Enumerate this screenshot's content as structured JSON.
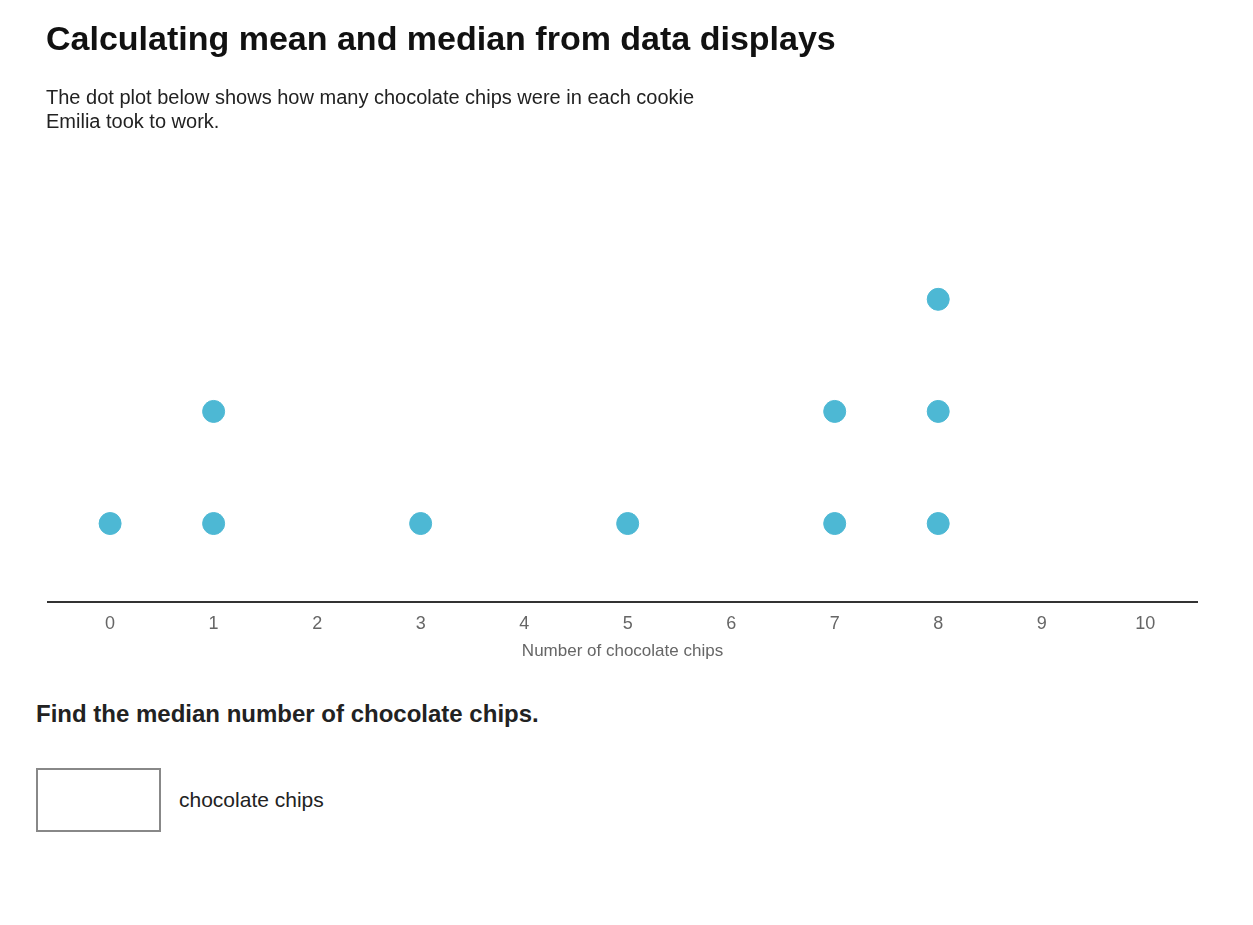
{
  "chart_data": {
    "type": "scatter",
    "title": "Calculating mean and median from data displays",
    "subtitle": [
      "The dot plot below shows how many chocolate chips were in each cookie",
      "Emilia took to work."
    ],
    "x_label": "Number of chocolate chips",
    "annotations": [
      "Find the median number of chocolate chips.",
      "chocolate chips"
    ],
    "x": [
      0,
      1,
      1,
      3,
      5,
      7,
      7,
      8,
      8,
      8
    ],
    "values": [
      1,
      1,
      2,
      1,
      1,
      1,
      2,
      1,
      2,
      3
    ],
    "color": "#4db8d4",
    "xlim": [
      -0.6,
      10.5
    ],
    "xticks": [
      0,
      1,
      2,
      3,
      4,
      5,
      6,
      7,
      8,
      9,
      10
    ],
    "ylim": [
      0.3,
      4.2
    ],
    "grid": false,
    "tick_labels": "x"
  }
}
